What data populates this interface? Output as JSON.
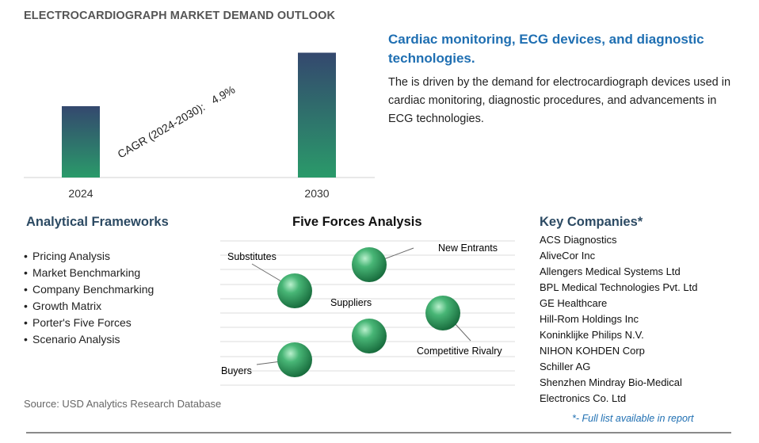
{
  "title": "ELECTROCARDIOGRAPH MARKET DEMAND OUTLOOK",
  "headline": "Cardiac monitoring, ECG devices, and diagnostic technologies.",
  "description": "The is driven by the demand for electrocardiograph devices used in cardiac monitoring, diagnostic procedures, and advancements in ECG technologies.",
  "chart_data": {
    "type": "bar",
    "categories": [
      "2024",
      "2030"
    ],
    "values": [
      1.0,
      1.75
    ],
    "value_note": "no y-axis printed; relative bar heights only",
    "annotation": {
      "label": "CAGR (2024-2030):",
      "value": "4.9%"
    },
    "grid": false,
    "bar_colors": [
      "#2a9a6a",
      "#34486e"
    ]
  },
  "frameworks": {
    "heading": "Analytical Frameworks",
    "items": [
      "Pricing Analysis",
      "Market Benchmarking",
      "Company Benchmarking",
      "Growth Matrix",
      "Porter's Five Forces",
      "Scenario Analysis"
    ]
  },
  "five_forces": {
    "heading": "Five Forces Analysis",
    "labels": {
      "substitutes": "Substitutes",
      "new_entrants": "New Entrants",
      "suppliers": "Suppliers",
      "competitive_rivalry": "Competitive Rivalry",
      "buyers": "Buyers"
    }
  },
  "companies": {
    "heading": "Key Companies*",
    "items": [
      "ACS Diagnostics",
      "AliveCor Inc",
      "Allengers Medical Systems Ltd",
      "BPL Medical Technologies Pvt. Ltd",
      "GE Healthcare",
      "Hill-Rom Holdings Inc",
      "Koninklijke Philips N.V.",
      "NIHON KOHDEN Corp",
      "Schiller AG",
      "Shenzhen Mindray Bio-Medical Electronics Co. Ltd"
    ],
    "note": "*- Full list available in report"
  },
  "source": "Source: USD Analytics Research Database",
  "colors": {
    "accent_blue": "#1f6fb2",
    "heading_navy": "#2c4a63",
    "sphere_green": "#2e9e5e"
  }
}
